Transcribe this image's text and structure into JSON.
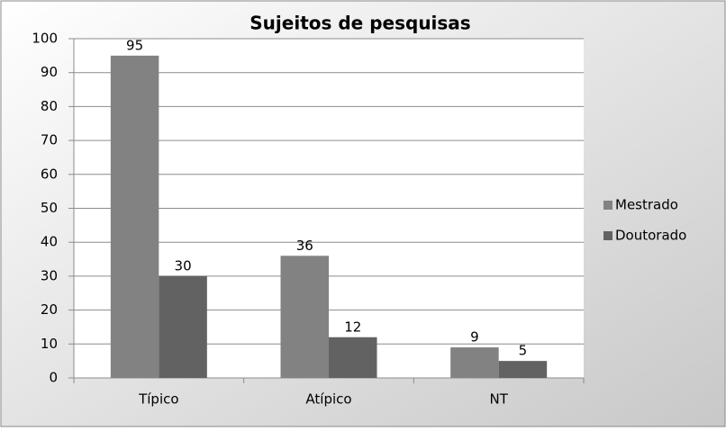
{
  "chart_data": {
    "type": "bar",
    "title": "Sujeitos de pesquisas",
    "categories": [
      "Típico",
      "Atípico",
      "NT"
    ],
    "series": [
      {
        "name": "Mestrado",
        "color": "#828282",
        "values": [
          95,
          36,
          9
        ]
      },
      {
        "name": "Doutorado",
        "color": "#626262",
        "values": [
          30,
          12,
          5
        ]
      }
    ],
    "ylim": [
      0,
      100
    ],
    "yticks": [
      0,
      10,
      20,
      30,
      40,
      50,
      60,
      70,
      80,
      90,
      100
    ],
    "grid": true,
    "legend": "right"
  }
}
